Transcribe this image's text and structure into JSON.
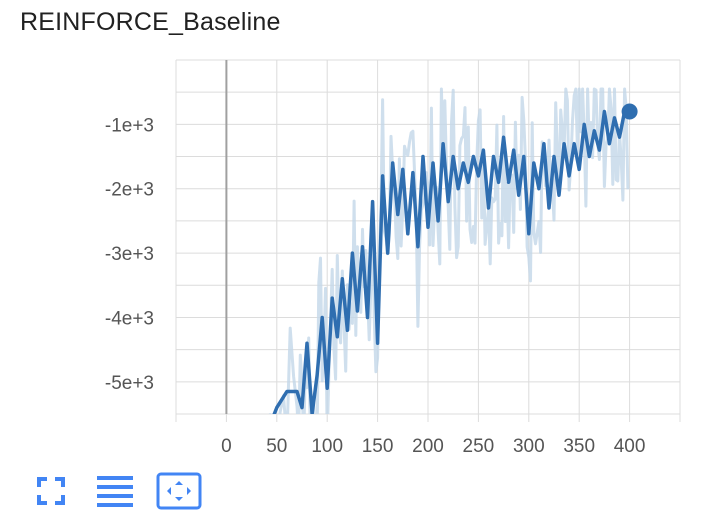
{
  "title": "REINFORCE_Baseline",
  "toolbar": {
    "buttons": [
      {
        "name": "fullscreen-icon",
        "label": "fullscreen"
      },
      {
        "name": "toggle-y-log-icon",
        "label": "toggle log scale"
      },
      {
        "name": "fit-domain-icon",
        "label": "fit domain to data"
      }
    ],
    "accent": "#4285f4"
  },
  "chart_data": {
    "type": "line",
    "title": "REINFORCE_Baseline",
    "xlabel": "",
    "ylabel": "",
    "xlim": [
      -50,
      450
    ],
    "ylim": [
      -5500,
      0
    ],
    "x_ticks": [
      0,
      50,
      100,
      150,
      200,
      250,
      300,
      350,
      400
    ],
    "x_tick_labels": [
      "0",
      "50",
      "100",
      "150",
      "200",
      "250",
      "300",
      "350",
      "400"
    ],
    "y_ticks": [
      -1000,
      -2000,
      -3000,
      -4000,
      -5000
    ],
    "y_tick_labels": [
      "-1e+3",
      "-2e+3",
      "-3e+3",
      "-4e+3",
      "-5e+3"
    ],
    "grid": true,
    "colors": {
      "smoothed": "#2f6eb0",
      "raw": "#c3d7e9",
      "grid": "#dcdcdc",
      "zero_line": "#a0a0a0"
    },
    "series": [
      {
        "x": [
          40,
          50,
          60,
          70,
          75,
          80,
          85,
          90,
          95,
          100,
          105,
          110,
          115,
          120,
          125,
          130,
          135,
          140,
          145,
          150,
          155,
          160,
          165,
          170,
          175,
          180,
          185,
          190,
          195,
          200,
          205,
          210,
          215,
          220,
          225,
          230,
          235,
          240,
          245,
          250,
          255,
          260,
          265,
          270,
          275,
          280,
          285,
          290,
          295,
          300,
          305,
          310,
          315,
          320,
          325,
          330,
          335,
          340,
          345,
          350,
          355,
          360,
          365,
          370,
          375,
          380,
          385,
          390,
          395,
          400
        ],
        "values": [
          -5800,
          -5400,
          -5150,
          -5150,
          -5400,
          -4400,
          -5500,
          -4900,
          -4000,
          -5100,
          -3700,
          -4300,
          -3400,
          -4200,
          -3000,
          -3900,
          -2900,
          -4000,
          -2200,
          -4400,
          -1800,
          -3000,
          -1600,
          -2400,
          -1700,
          -2700,
          -1750,
          -2900,
          -1500,
          -2600,
          -1600,
          -2500,
          -1300,
          -2200,
          -1500,
          -2000,
          -1600,
          -1900,
          -1500,
          -1800,
          -1400,
          -2300,
          -1500,
          -1900,
          -1200,
          -1900,
          -1400,
          -2100,
          -1500,
          -2700,
          -1600,
          -2000,
          -1300,
          -2300,
          -1500,
          -2100,
          -1300,
          -1800,
          -1300,
          -1700,
          -1000,
          -1500,
          -1100,
          -1400,
          -800,
          -1300,
          -900,
          -1200,
          -800,
          -800
        ]
      }
    ]
  }
}
